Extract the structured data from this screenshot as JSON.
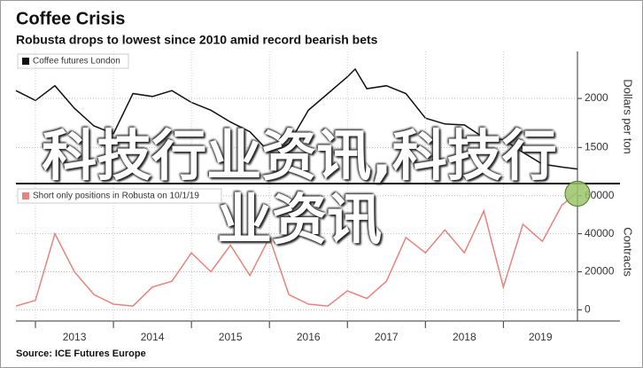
{
  "title": "Coffee Crisis",
  "subtitle": "Robusta drops to lowest since 2010 amid record bearish bets",
  "source": "Source: ICE Futures Europe",
  "watermark": "科技行业资讯,科技行业资讯",
  "chart_data": [
    {
      "type": "line",
      "y_label": "Dollars per ton",
      "xlim": [
        2012.75,
        2019.95
      ],
      "ylim": [
        1150,
        2480
      ],
      "yticks": [
        1500,
        2000
      ],
      "grid": true,
      "series": [
        {
          "name": "Coffee futures London",
          "color": "#111111",
          "x": [
            2012.75,
            2013.0,
            2013.25,
            2013.5,
            2013.75,
            2014.0,
            2014.25,
            2014.5,
            2014.75,
            2015.0,
            2015.25,
            2015.5,
            2015.75,
            2016.0,
            2016.25,
            2016.5,
            2016.75,
            2017.0,
            2017.1,
            2017.25,
            2017.5,
            2017.75,
            2018.0,
            2018.25,
            2018.5,
            2018.75,
            2019.0,
            2019.25,
            2019.5,
            2019.75,
            2019.95
          ],
          "values": [
            2080,
            1980,
            2130,
            1900,
            1720,
            1640,
            2050,
            2020,
            2080,
            1960,
            1880,
            1760,
            1660,
            1450,
            1540,
            1880,
            2050,
            2220,
            2300,
            2100,
            2130,
            2050,
            1800,
            1740,
            1730,
            1600,
            1580,
            1450,
            1330,
            1300,
            1280
          ]
        }
      ]
    },
    {
      "type": "line",
      "y_label": "Contracts",
      "xlim": [
        2012.75,
        2019.95
      ],
      "ylim": [
        -4000,
        65000
      ],
      "yticks": [
        0,
        20000,
        40000,
        60000
      ],
      "grid": true,
      "xticks": [
        2013,
        2014,
        2015,
        2016,
        2017,
        2018,
        2019
      ],
      "series": [
        {
          "name": "Short only positions in Robusta on 10/1/19",
          "color": "#e8837c",
          "x": [
            2012.75,
            2013.0,
            2013.25,
            2013.5,
            2013.75,
            2014.0,
            2014.25,
            2014.5,
            2014.75,
            2015.0,
            2015.25,
            2015.5,
            2015.75,
            2016.0,
            2016.25,
            2016.5,
            2016.75,
            2017.0,
            2017.25,
            2017.5,
            2017.75,
            2018.0,
            2018.25,
            2018.5,
            2018.75,
            2019.0,
            2019.25,
            2019.5,
            2019.75,
            2019.95
          ],
          "values": [
            2000,
            5000,
            40000,
            20000,
            8000,
            3000,
            2000,
            12000,
            15000,
            30000,
            20000,
            34000,
            18000,
            38000,
            8000,
            3000,
            2000,
            10000,
            6000,
            15000,
            38000,
            30000,
            42000,
            30000,
            52000,
            12000,
            45000,
            36000,
            55000,
            62000
          ]
        }
      ]
    }
  ]
}
